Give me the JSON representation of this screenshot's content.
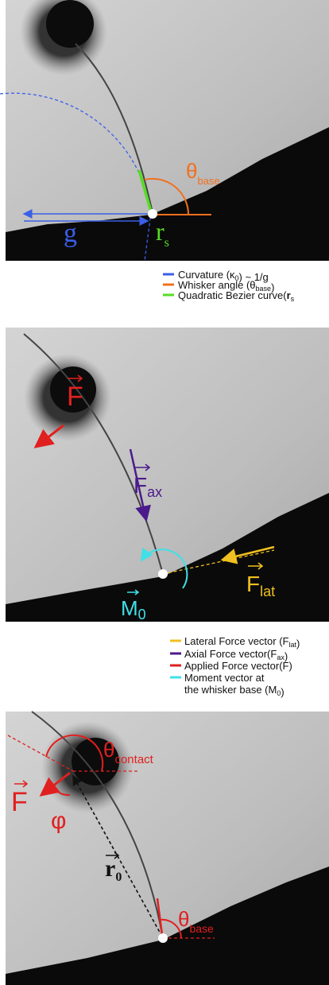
{
  "panel_a": {
    "labels": {
      "theta_base": {
        "symbol": "θ",
        "subscript": "base"
      },
      "g": "g",
      "r_s": {
        "symbol": "r",
        "subscript": "s"
      }
    },
    "legend": [
      [
        "Curvature (κ",
        {
          "sub": "0"
        },
        ") ~ 1/g"
      ],
      [
        "Whisker angle (θ",
        {
          "sub": "base"
        },
        ")"
      ],
      [
        "Quadratic Bezier curve(",
        {
          "bold": "r"
        },
        {
          "sub": "s"
        }
      ]
    ]
  },
  "panel_b": {
    "labels": {
      "F": "F",
      "F_ax": {
        "symbol": "F",
        "subscript": "ax"
      },
      "F_lat": {
        "symbol": "F",
        "subscript": "lat"
      },
      "M_0": {
        "symbol": "M",
        "subscript": "0"
      }
    },
    "legend": [
      [
        "Lateral Force vector (F",
        {
          "sub": "lat"
        },
        ")"
      ],
      [
        "Axial Force vector(F",
        {
          "sub": "ax"
        },
        ")"
      ],
      [
        "Applied Force vector(F)"
      ],
      [
        "Moment vector at"
      ],
      [
        "the whisker base (M",
        {
          "sub": "0"
        },
        ")"
      ]
    ]
  },
  "panel_c": {
    "labels": {
      "theta_contact": {
        "symbol": "θ",
        "subscript": "contact"
      },
      "F": "F",
      "phi": "φ",
      "r_0": {
        "symbol": "r",
        "subscript": "0"
      },
      "theta_base": {
        "symbol": "θ",
        "subscript": "base"
      }
    }
  }
}
